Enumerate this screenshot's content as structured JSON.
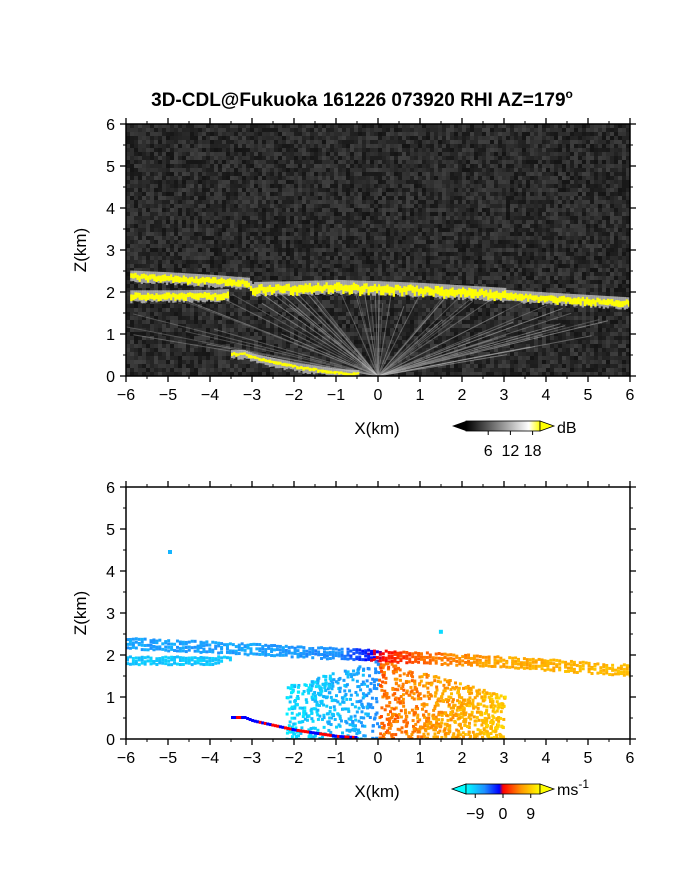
{
  "chart_data": [
    {
      "type": "heatmap",
      "panel": "reflectivity",
      "title": "3D-CDL@Fukuoka 161226 073920 RHI AZ=179",
      "title_sup": "o",
      "xlabel": "X(km)",
      "ylabel": "Z(km)",
      "xlim": [
        -6,
        6
      ],
      "ylim": [
        0,
        6
      ],
      "xticks": [
        "-6",
        "-5",
        "-4",
        "-3",
        "-2",
        "-1",
        "0",
        "1",
        "2",
        "3",
        "4",
        "5",
        "6"
      ],
      "yticks": [
        "0",
        "1",
        "2",
        "3",
        "4",
        "5",
        "6"
      ],
      "colorbar": {
        "unit": "dB",
        "ticks": [
          "6",
          "12",
          "18"
        ],
        "range": [
          0,
          20
        ]
      },
      "background": "#2a2a2a",
      "features": [
        {
          "name": "upper cloud base layer",
          "color": "#ffff00",
          "x": [
            -5.9,
            -5,
            -4,
            -3.1,
            -3,
            -2,
            -1,
            0,
            1,
            2,
            3,
            4,
            5,
            6
          ],
          "z": [
            2.32,
            2.28,
            2.22,
            2.15,
            2.0,
            2.02,
            2.05,
            2.02,
            1.98,
            1.92,
            1.86,
            1.8,
            1.74,
            1.68
          ]
        },
        {
          "name": "lower cloud base layer",
          "color": "#ffff00",
          "x": [
            -5.9,
            -5,
            -4,
            -3.6
          ],
          "z": [
            1.85,
            1.85,
            1.86,
            1.88
          ]
        },
        {
          "name": "ground clutter",
          "color": "#ffff00",
          "x": [
            -3.5,
            -3.2,
            -3,
            -2,
            -1,
            -0.5
          ],
          "z": [
            0.5,
            0.5,
            0.42,
            0.2,
            0.05,
            0.02
          ]
        }
      ]
    },
    {
      "type": "heatmap",
      "panel": "doppler velocity",
      "xlabel": "X(km)",
      "ylabel": "Z(km)",
      "xlim": [
        -6,
        6
      ],
      "ylim": [
        0,
        6
      ],
      "xticks": [
        "-6",
        "-5",
        "-4",
        "-3",
        "-2",
        "-1",
        "0",
        "1",
        "2",
        "3",
        "4",
        "5",
        "6"
      ],
      "yticks": [
        "0",
        "1",
        "2",
        "3",
        "4",
        "5",
        "6"
      ],
      "colorbar": {
        "unit": "ms",
        "unit_sup": "-1",
        "ticks": [
          "-9",
          "0",
          "9"
        ],
        "range": [
          -12,
          12
        ]
      },
      "features": [
        {
          "name": "upper layer velocity",
          "x": [
            -6,
            -3,
            -1,
            0,
            1,
            3,
            6
          ],
          "z": [
            2.3,
            2.15,
            2.05,
            2.0,
            1.95,
            1.85,
            1.65
          ],
          "v": [
            -7,
            -7,
            -6,
            0,
            4,
            7,
            8
          ]
        },
        {
          "name": "lower layer velocity",
          "x": [
            -6,
            -3.5
          ],
          "z": [
            1.85,
            1.85
          ],
          "v": [
            -9,
            -9
          ]
        },
        {
          "name": "isolated point",
          "x": [
            -5
          ],
          "z": [
            4.5
          ],
          "v": [
            -8
          ]
        },
        {
          "name": "isolated point",
          "x": [
            1.45
          ],
          "z": [
            2.6
          ],
          "v": [
            -10
          ]
        }
      ]
    }
  ]
}
